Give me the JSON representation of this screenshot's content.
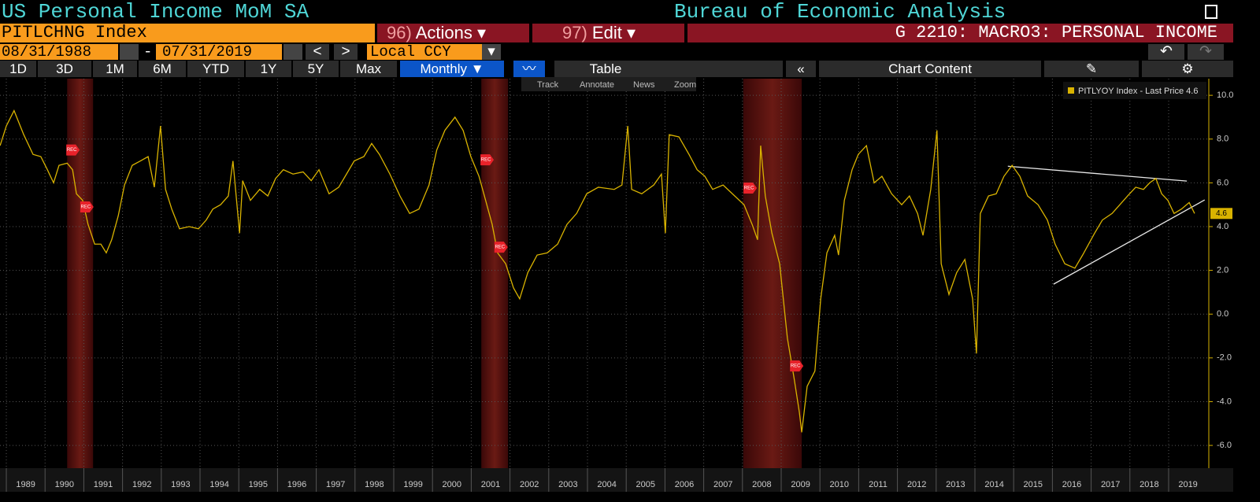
{
  "header": {
    "title": "US Personal Income MoM SA",
    "source": "Bureau of Economic Analysis"
  },
  "toolbar": {
    "ticker": "PITLCHNG Index",
    "actions_num": "96)",
    "actions": "Actions",
    "edit_num": "97)",
    "edit": "Edit",
    "function": "G 2210: MACRO3: PERSONAL INCOME",
    "start_date": "08/31/1988",
    "date_sep": "-",
    "end_date": "07/31/2019",
    "prev": "<",
    "next": ">",
    "currency": "Local CCY",
    "periods": [
      "1D",
      "3D",
      "1M",
      "6M",
      "YTD",
      "1Y",
      "5Y",
      "Max"
    ],
    "frequency": "Monthly",
    "table": "Table",
    "collapse": "«",
    "chart_content": "Chart Content",
    "chart_tools": [
      "Track",
      "Annotate",
      "News",
      "Zoom"
    ]
  },
  "chart_data": {
    "type": "line",
    "series": [
      {
        "name": "PITLYOY Index - Last Price 4.6",
        "color": "#d9b300",
        "x": [
          1988.84,
          1989.0,
          1989.2,
          1989.45,
          1989.69,
          1989.89,
          1990.06,
          1990.22,
          1990.36,
          1990.57,
          1990.71,
          1990.81,
          1990.97,
          1991.11,
          1991.28,
          1991.44,
          1991.58,
          1991.72,
          1991.89,
          1992.05,
          1992.25,
          1992.46,
          1992.66,
          1992.82,
          1992.98,
          1993.11,
          1993.27,
          1993.47,
          1993.72,
          1993.96,
          1994.16,
          1994.33,
          1994.53,
          1994.73,
          1994.85,
          1995.02,
          1995.1,
          1995.3,
          1995.54,
          1995.75,
          1995.95,
          1996.15,
          1996.4,
          1996.66,
          1996.87,
          1997.07,
          1997.33,
          1997.58,
          1997.78,
          1997.98,
          1998.23,
          1998.43,
          1998.63,
          1998.9,
          1999.16,
          1999.41,
          1999.65,
          1999.91,
          2000.11,
          2000.32,
          2000.58,
          2000.79,
          2000.99,
          2001.2,
          2001.34,
          2001.54,
          2001.68,
          2001.89,
          2002.09,
          2002.25,
          2002.46,
          2002.7,
          2002.96,
          2003.23,
          2003.47,
          2003.72,
          2003.98,
          2004.28,
          2004.69,
          2004.89,
          2005.04,
          2005.14,
          2005.4,
          2005.71,
          2005.91,
          2006.01,
          2006.11,
          2006.36,
          2006.62,
          2006.83,
          2007.03,
          2007.23,
          2007.5,
          2007.74,
          2008.04,
          2008.25,
          2008.39,
          2008.47,
          2008.59,
          2008.76,
          2008.96,
          2009.16,
          2009.33,
          2009.47,
          2009.53,
          2009.67,
          2009.87,
          2010.02,
          2010.18,
          2010.38,
          2010.48,
          2010.63,
          2010.83,
          2010.99,
          2011.2,
          2011.4,
          2011.6,
          2011.85,
          2012.11,
          2012.31,
          2012.52,
          2012.66,
          2012.86,
          2013.02,
          2013.13,
          2013.33,
          2013.53,
          2013.74,
          2013.94,
          2014.04,
          2014.14,
          2014.35,
          2014.55,
          2014.75,
          2014.96,
          2015.16,
          2015.36,
          2015.63,
          2015.87,
          2016.07,
          2016.32,
          2016.58,
          2016.78,
          2017.09,
          2017.29,
          2017.54,
          2017.74,
          2017.94,
          2018.15,
          2018.35,
          2018.51,
          2018.67,
          2018.82,
          2018.98,
          2019.14,
          2019.33,
          2019.53,
          2019.67
        ],
        "values": [
          7.7,
          8.6,
          9.3,
          8.2,
          7.3,
          7.2,
          6.6,
          6.0,
          6.8,
          6.9,
          6.6,
          5.5,
          5.2,
          4.1,
          3.2,
          3.2,
          2.8,
          3.4,
          4.5,
          5.9,
          6.8,
          7.0,
          7.2,
          5.8,
          8.6,
          5.7,
          4.8,
          3.9,
          4.0,
          3.9,
          4.3,
          4.8,
          5.0,
          5.4,
          7.0,
          3.7,
          6.1,
          5.2,
          5.7,
          5.4,
          6.2,
          6.6,
          6.4,
          6.5,
          6.1,
          6.6,
          5.5,
          5.8,
          6.4,
          7.0,
          7.2,
          7.8,
          7.3,
          6.4,
          5.4,
          4.6,
          4.8,
          5.9,
          7.5,
          8.4,
          9.0,
          8.4,
          7.2,
          6.3,
          5.4,
          4.1,
          2.8,
          2.3,
          1.2,
          0.7,
          1.9,
          2.7,
          2.8,
          3.2,
          4.1,
          4.6,
          5.5,
          5.8,
          5.7,
          5.9,
          8.6,
          5.7,
          5.5,
          5.9,
          6.4,
          3.7,
          8.2,
          8.1,
          7.3,
          6.6,
          6.3,
          5.7,
          5.9,
          5.5,
          5.0,
          4.1,
          3.4,
          7.7,
          5.4,
          3.7,
          2.3,
          -1.1,
          -2.9,
          -4.5,
          -5.4,
          -3.3,
          -2.6,
          0.7,
          2.8,
          3.6,
          2.7,
          5.2,
          6.6,
          7.3,
          7.7,
          6.0,
          6.3,
          5.5,
          5.0,
          5.4,
          4.6,
          3.6,
          5.7,
          8.4,
          2.3,
          0.9,
          1.9,
          2.5,
          0.7,
          -1.8,
          4.6,
          5.4,
          5.5,
          6.3,
          6.8,
          6.3,
          5.4,
          5.0,
          4.3,
          3.2,
          2.3,
          2.1,
          2.7,
          3.7,
          4.3,
          4.6,
          5.0,
          5.4,
          5.8,
          5.7,
          6.0,
          6.2,
          5.5,
          5.2,
          4.6,
          4.8,
          5.1,
          4.6
        ]
      }
    ],
    "last_price": 4.6,
    "recessions": [
      [
        1990.57,
        1991.24
      ],
      [
        2001.26,
        2001.95
      ],
      [
        2008.02,
        2009.53
      ]
    ],
    "annotations": [
      {
        "x": 1990.71,
        "y": 7.5,
        "label": "REC"
      },
      {
        "x": 1991.07,
        "y": 4.9,
        "label": "REC"
      },
      {
        "x": 2001.4,
        "y": 7.05,
        "label": "REC"
      },
      {
        "x": 2001.76,
        "y": 3.06,
        "label": "REC"
      },
      {
        "x": 2008.19,
        "y": 5.76,
        "label": "REC"
      },
      {
        "x": 2009.39,
        "y": -2.37,
        "label": "REC"
      }
    ],
    "trendlines": [
      {
        "x": [
          2014.85,
          2019.47
        ],
        "y": [
          6.76,
          6.08
        ]
      },
      {
        "x": [
          2016.03,
          2019.93
        ],
        "y": [
          1.37,
          5.22
        ]
      }
    ],
    "xlim": [
      1988.837,
      2020.037
    ],
    "xticks": [
      1989,
      1990,
      1991,
      1992,
      1993,
      1994,
      1995,
      1996,
      1997,
      1998,
      1999,
      2000,
      2001,
      2002,
      2003,
      2004,
      2005,
      2006,
      2007,
      2008,
      2009,
      2010,
      2011,
      2012,
      2013,
      2014,
      2015,
      2016,
      2017,
      2018,
      2019
    ],
    "ylim": [
      -7.04,
      10.76
    ],
    "yticks": [
      {
        "value": -6,
        "label": "-6.0"
      },
      {
        "value": -4,
        "label": "-4.0"
      },
      {
        "value": -2,
        "label": "-2.0"
      },
      {
        "value": 0,
        "label": "0.0"
      },
      {
        "value": 2,
        "label": "2.0"
      },
      {
        "value": 4,
        "label": "4.0"
      },
      {
        "value": 6,
        "label": "6.0"
      },
      {
        "value": 8,
        "label": "8.0"
      },
      {
        "value": 10,
        "label": "10.0"
      }
    ],
    "grid": true
  }
}
